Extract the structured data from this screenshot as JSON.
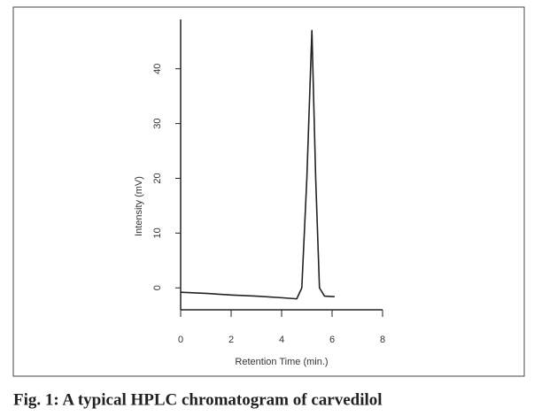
{
  "caption": "Fig. 1: A typical HPLC chromatogram of carvedilol",
  "chart_data": {
    "type": "line",
    "xlabel": "Retention Time (min.)",
    "ylabel": "Intensity (mV)",
    "x": [
      0,
      1,
      2,
      3,
      4,
      4.6,
      4.8,
      5.0,
      5.2,
      5.35,
      5.5,
      5.7,
      6.1
    ],
    "values": [
      -0.8,
      -1.0,
      -1.3,
      -1.5,
      -1.8,
      -2.0,
      0,
      20,
      47,
      20,
      0,
      -1.5,
      -1.6
    ],
    "color": "#222222",
    "xlim": [
      0,
      8
    ],
    "ylim": [
      -4,
      49
    ],
    "xticks": [
      0,
      2,
      4,
      6,
      8
    ],
    "yticks": [
      0,
      10,
      20,
      30,
      40
    ]
  }
}
